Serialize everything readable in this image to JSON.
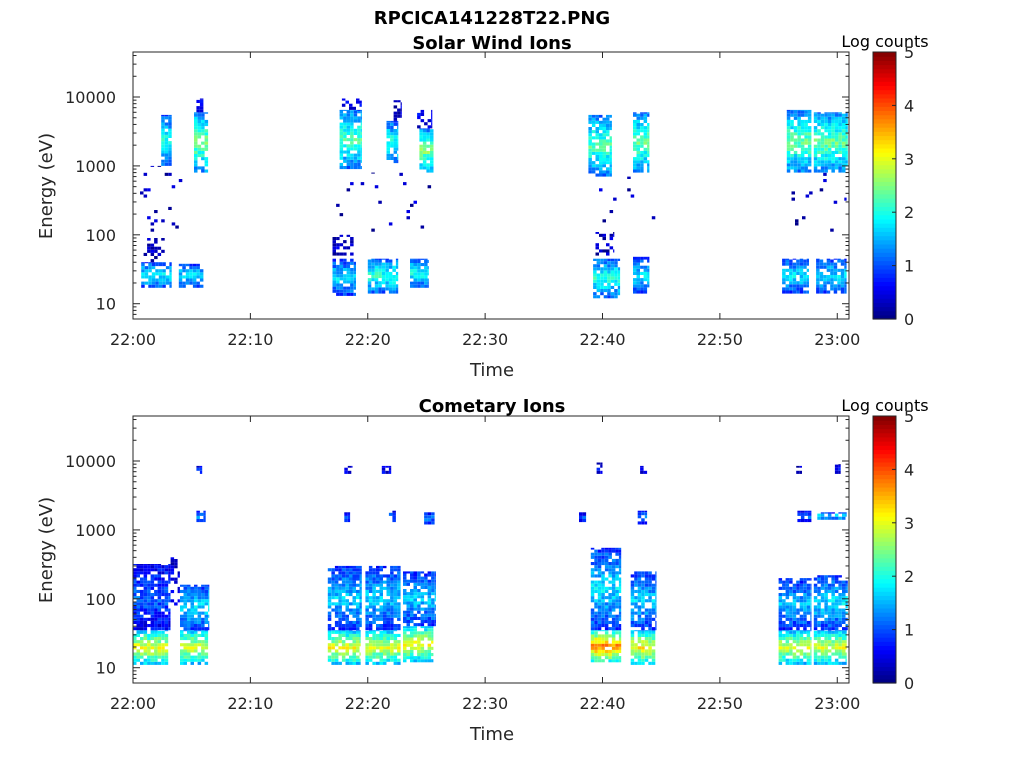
{
  "figure_title": "RPCICA141228T22.PNG",
  "colors": {
    "axis": "#262626",
    "background": "#ffffff"
  },
  "colormap": "jet",
  "chart_data": [
    {
      "type": "heatmap",
      "title": "Solar Wind Ions",
      "xlabel": "Time",
      "ylabel": "Energy (eV)",
      "x_ticks": [
        "22:00",
        "22:10",
        "22:20",
        "22:30",
        "22:40",
        "22:50",
        "23:00"
      ],
      "x_range_minutes_after_22_00": [
        0,
        61
      ],
      "y_scale": "log",
      "y_ticks": [
        "10",
        "100",
        "1000",
        "10000"
      ],
      "y_range_eV": [
        6,
        45000
      ],
      "colorbar": {
        "label": "Log counts",
        "ticks": [
          "0",
          "1",
          "2",
          "3",
          "4",
          "5"
        ],
        "range": [
          0,
          5
        ]
      },
      "grid": false,
      "blobs": [
        {
          "t0": 0.7,
          "t1": 3.3,
          "e0": 17,
          "e1": 40,
          "v": 1.7
        },
        {
          "t0": 0.9,
          "t1": 2.7,
          "e0": 40,
          "e1": 90,
          "v": 0.4,
          "d": 0.35
        },
        {
          "t0": 2.4,
          "t1": 3.3,
          "e0": 1000,
          "e1": 5500,
          "v": 1.8
        },
        {
          "t0": 0.6,
          "t1": 4.8,
          "e0": 100,
          "e1": 1000,
          "v": 0.3,
          "d": 0.05
        },
        {
          "t0": 3.9,
          "t1": 6.0,
          "e0": 17,
          "e1": 38,
          "v": 1.6
        },
        {
          "t0": 5.2,
          "t1": 6.4,
          "e0": 800,
          "e1": 6000,
          "v": 2.3
        },
        {
          "t0": 5.4,
          "t1": 6.2,
          "e0": 6000,
          "e1": 9500,
          "v": 0.6,
          "d": 0.5
        },
        {
          "t0": 17.0,
          "t1": 19.0,
          "e0": 13,
          "e1": 45,
          "v": 1.6
        },
        {
          "t0": 17.0,
          "t1": 18.8,
          "e0": 50,
          "e1": 100,
          "v": 0.4,
          "d": 0.35
        },
        {
          "t0": 17.6,
          "t1": 19.5,
          "e0": 900,
          "e1": 6500,
          "v": 2.1
        },
        {
          "t0": 17.8,
          "t1": 19.5,
          "e0": 6500,
          "e1": 9500,
          "v": 0.5,
          "d": 0.45
        },
        {
          "t0": 20.0,
          "t1": 22.6,
          "e0": 14,
          "e1": 45,
          "v": 1.9
        },
        {
          "t0": 21.6,
          "t1": 22.6,
          "e0": 1100,
          "e1": 4500,
          "v": 1.9
        },
        {
          "t0": 22.2,
          "t1": 22.9,
          "e0": 4500,
          "e1": 9000,
          "v": 0.4,
          "d": 0.5
        },
        {
          "t0": 23.6,
          "t1": 25.2,
          "e0": 17,
          "e1": 45,
          "v": 1.8
        },
        {
          "t0": 24.4,
          "t1": 25.6,
          "e0": 800,
          "e1": 3500,
          "v": 2.3
        },
        {
          "t0": 24.2,
          "t1": 25.5,
          "e0": 3500,
          "e1": 6500,
          "v": 0.6,
          "d": 0.5
        },
        {
          "t0": 17.0,
          "t1": 25.5,
          "e0": 100,
          "e1": 800,
          "v": 0.3,
          "d": 0.03
        },
        {
          "t0": 38.8,
          "t1": 40.8,
          "e0": 700,
          "e1": 5500,
          "v": 2.1
        },
        {
          "t0": 39.2,
          "t1": 41.5,
          "e0": 12,
          "e1": 45,
          "v": 1.9
        },
        {
          "t0": 39.4,
          "t1": 41.0,
          "e0": 50,
          "e1": 110,
          "v": 0.4,
          "d": 0.35
        },
        {
          "t0": 42.6,
          "t1": 44.0,
          "e0": 800,
          "e1": 6000,
          "v": 2.2
        },
        {
          "t0": 42.6,
          "t1": 44.0,
          "e0": 14,
          "e1": 48,
          "v": 1.6
        },
        {
          "t0": 38.5,
          "t1": 44.5,
          "e0": 100,
          "e1": 700,
          "v": 0.3,
          "d": 0.03
        },
        {
          "t0": 55.3,
          "t1": 57.6,
          "e0": 14,
          "e1": 45,
          "v": 1.6
        },
        {
          "t0": 55.7,
          "t1": 57.8,
          "e0": 800,
          "e1": 6500,
          "v": 2.2
        },
        {
          "t0": 58.2,
          "t1": 60.8,
          "e0": 14,
          "e1": 45,
          "v": 1.6
        },
        {
          "t0": 58.0,
          "t1": 60.9,
          "e0": 800,
          "e1": 6000,
          "v": 2.2
        },
        {
          "t0": 55.5,
          "t1": 60.8,
          "e0": 100,
          "e1": 800,
          "v": 0.3,
          "d": 0.04
        }
      ]
    },
    {
      "type": "heatmap",
      "title": "Cometary Ions",
      "xlabel": "Time",
      "ylabel": "Energy (eV)",
      "x_ticks": [
        "22:00",
        "22:10",
        "22:20",
        "22:30",
        "22:40",
        "22:50",
        "23:00"
      ],
      "x_range_minutes_after_22_00": [
        0,
        61
      ],
      "y_scale": "log",
      "y_ticks": [
        "10",
        "100",
        "1000",
        "10000"
      ],
      "y_range_eV": [
        6,
        45000
      ],
      "colorbar": {
        "label": "Log counts",
        "ticks": [
          "0",
          "1",
          "2",
          "3",
          "4",
          "5"
        ],
        "range": [
          0,
          5
        ]
      },
      "grid": false,
      "blobs": [
        {
          "t0": 0.0,
          "t1": 3.0,
          "e0": 11,
          "e1": 35,
          "v": 2.8
        },
        {
          "t0": 0.0,
          "t1": 3.2,
          "e0": 35,
          "e1": 320,
          "v": 1.0
        },
        {
          "t0": 3.2,
          "t1": 4.0,
          "e0": 80,
          "e1": 400,
          "v": 0.5,
          "d": 0.5
        },
        {
          "t0": 4.0,
          "t1": 6.4,
          "e0": 11,
          "e1": 35,
          "v": 2.7
        },
        {
          "t0": 4.0,
          "t1": 6.5,
          "e0": 35,
          "e1": 160,
          "v": 1.6
        },
        {
          "t0": 5.4,
          "t1": 6.2,
          "e0": 1300,
          "e1": 1900,
          "v": 1.2
        },
        {
          "t0": 5.4,
          "t1": 5.9,
          "e0": 6500,
          "e1": 8500,
          "v": 0.7
        },
        {
          "t0": 16.6,
          "t1": 19.4,
          "e0": 11,
          "e1": 35,
          "v": 2.8
        },
        {
          "t0": 16.6,
          "t1": 19.5,
          "e0": 35,
          "e1": 300,
          "v": 1.5
        },
        {
          "t0": 18.0,
          "t1": 18.5,
          "e0": 1300,
          "e1": 1800,
          "v": 0.9
        },
        {
          "t0": 18.0,
          "t1": 18.7,
          "e0": 6500,
          "e1": 8500,
          "v": 0.6
        },
        {
          "t0": 19.8,
          "t1": 22.8,
          "e0": 11,
          "e1": 35,
          "v": 2.7
        },
        {
          "t0": 19.8,
          "t1": 22.8,
          "e0": 35,
          "e1": 300,
          "v": 1.5
        },
        {
          "t0": 21.8,
          "t1": 22.4,
          "e0": 1300,
          "e1": 1900,
          "v": 1.1
        },
        {
          "t0": 21.2,
          "t1": 22.0,
          "e0": 6500,
          "e1": 8500,
          "v": 0.6
        },
        {
          "t0": 23.0,
          "t1": 25.6,
          "e0": 12,
          "e1": 40,
          "v": 2.8
        },
        {
          "t0": 23.0,
          "t1": 25.8,
          "e0": 40,
          "e1": 250,
          "v": 1.5
        },
        {
          "t0": 24.8,
          "t1": 25.7,
          "e0": 1200,
          "e1": 1800,
          "v": 1.1
        },
        {
          "t0": 39.0,
          "t1": 41.6,
          "e0": 12,
          "e1": 35,
          "v": 3.4
        },
        {
          "t0": 39.0,
          "t1": 41.6,
          "e0": 35,
          "e1": 550,
          "v": 1.6
        },
        {
          "t0": 38.0,
          "t1": 38.6,
          "e0": 1300,
          "e1": 1800,
          "v": 1.0
        },
        {
          "t0": 39.5,
          "t1": 40.0,
          "e0": 6500,
          "e1": 9500,
          "v": 0.6
        },
        {
          "t0": 42.4,
          "t1": 44.5,
          "e0": 11,
          "e1": 35,
          "v": 2.9
        },
        {
          "t0": 42.4,
          "t1": 44.6,
          "e0": 35,
          "e1": 250,
          "v": 1.5
        },
        {
          "t0": 43.0,
          "t1": 43.8,
          "e0": 1200,
          "e1": 1900,
          "v": 1.1
        },
        {
          "t0": 43.2,
          "t1": 43.8,
          "e0": 6500,
          "e1": 8500,
          "v": 0.6
        },
        {
          "t0": 55.0,
          "t1": 57.8,
          "e0": 11,
          "e1": 35,
          "v": 2.7
        },
        {
          "t0": 55.0,
          "t1": 57.8,
          "e0": 35,
          "e1": 200,
          "v": 1.4
        },
        {
          "t0": 56.6,
          "t1": 57.8,
          "e0": 1300,
          "e1": 1900,
          "v": 1.1
        },
        {
          "t0": 58.0,
          "t1": 60.8,
          "e0": 11,
          "e1": 35,
          "v": 2.7
        },
        {
          "t0": 58.0,
          "t1": 60.9,
          "e0": 35,
          "e1": 220,
          "v": 1.6
        },
        {
          "t0": 58.3,
          "t1": 60.8,
          "e0": 1400,
          "e1": 1800,
          "v": 1.6
        },
        {
          "t0": 56.5,
          "t1": 57.0,
          "e0": 6500,
          "e1": 8500,
          "v": 0.6
        },
        {
          "t0": 59.8,
          "t1": 60.3,
          "e0": 6500,
          "e1": 9000,
          "v": 0.6
        }
      ]
    }
  ]
}
